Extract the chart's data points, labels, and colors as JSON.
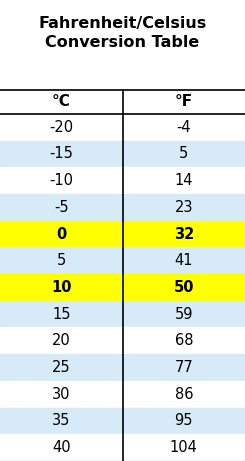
{
  "title": "Fahrenheit/Celsius\nConversion Table",
  "col_headers": [
    "°C",
    "°F"
  ],
  "rows": [
    [
      "-20",
      "-4"
    ],
    [
      "-15",
      "5"
    ],
    [
      "-10",
      "14"
    ],
    [
      "-5",
      "23"
    ],
    [
      "0",
      "32"
    ],
    [
      "5",
      "41"
    ],
    [
      "10",
      "50"
    ],
    [
      "15",
      "59"
    ],
    [
      "20",
      "68"
    ],
    [
      "25",
      "77"
    ],
    [
      "30",
      "86"
    ],
    [
      "35",
      "95"
    ],
    [
      "40",
      "104"
    ]
  ],
  "row_colors": [
    "#ffffff",
    "#d6eaf8",
    "#ffffff",
    "#d6eaf8",
    "#ffff00",
    "#d6eaf8",
    "#ffff00",
    "#d6eaf8",
    "#ffffff",
    "#d6eaf8",
    "#ffffff",
    "#d6eaf8",
    "#ffffff"
  ],
  "highlight_yellow": [
    4,
    6
  ],
  "alt_row_color": "#d6eaf8",
  "white_row_color": "#ffffff",
  "yellow_color": "#ffff00",
  "header_bg": "#ffffff",
  "title_fontsize": 11.5,
  "header_fontsize": 11,
  "data_fontsize": 10.5,
  "fig_bg": "#ffffff"
}
